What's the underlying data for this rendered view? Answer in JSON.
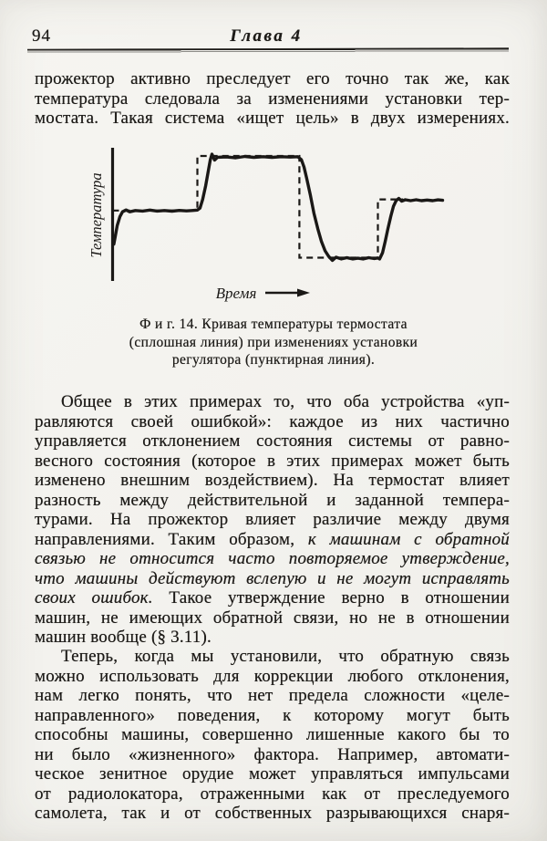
{
  "header": {
    "page_number": "94",
    "chapter_title": "Глава 4"
  },
  "body": {
    "paragraphs": [
      {
        "lines": [
          {
            "t": "прожектор активно преследует его точно так же, как"
          },
          {
            "t": "температура следовала за изменениями установки тер-"
          },
          {
            "t": "мостата. Такая система «ищет цель» в двух измерениях."
          }
        ]
      },
      {
        "lines": [
          {
            "t": "Общее в этих примерах то, что оба устройства «уп-",
            "indent": true
          },
          {
            "t": "равляются своей ошибкой»: каждое из них частично"
          },
          {
            "t": "управляется отклонением состояния системы от равно-"
          },
          {
            "t": "весного состояния (которое в этих примерах может быть"
          },
          {
            "t": "изменено внешним воздействием). На термостат влияет"
          },
          {
            "t": "разность между действительной и заданной темпера-"
          },
          {
            "t": "турами. На прожектор влияет различие между двумя"
          },
          {
            "seg": [
              {
                "t": "направлениями. Таким образом, "
              },
              {
                "t": "к машинам с обратной",
                "i": true
              }
            ]
          },
          {
            "t": "связью не относится часто повторяемое утверждение,",
            "i": true
          },
          {
            "t": "что машины действуют вслепую и не могут исправлять",
            "i": true
          },
          {
            "seg": [
              {
                "t": "своих ошибок.",
                "i": true
              },
              {
                "t": " Такое утверждение верно в отношении"
              }
            ]
          },
          {
            "t": "машин, не имеющих обратной связи, но не в отношении"
          },
          {
            "t": "машин вообще (§ 3.11).",
            "last": true
          }
        ]
      },
      {
        "lines": [
          {
            "t": "Теперь, когда мы установили, что обратную связь",
            "indent": true
          },
          {
            "t": "можно использовать для коррекции любого отклонения,"
          },
          {
            "t": "нам легко понять, что нет предела сложности «целе-"
          },
          {
            "t": "направленного» поведения, к которому могут быть"
          },
          {
            "t": "способны машины, совершенно лишенные какого бы то"
          },
          {
            "t": "ни было «жизненного» фактора. Например, автомати-"
          },
          {
            "t": "ческое зенитное орудие может управляться импульсами"
          },
          {
            "t": "от радиолокатора, отраженными как от преследуемого"
          },
          {
            "t": "самолета, так и от собственных разрывающихся снаря-"
          }
        ]
      }
    ]
  },
  "figure": {
    "ylabel": "Температура",
    "xlabel": "Время",
    "caption_lines": [
      "Ф и г.  14.  Кривая температуры термостата",
      "(сплошная линия) при изменениях установки",
      "регулятора (пунктирная линия)."
    ],
    "ink_color": "#1a1816"
  },
  "chart_data": {
    "type": "line",
    "title": "Фиг. 14. Кривая температуры термостата при изменениях установки регулятора",
    "xlabel": "Время",
    "ylabel": "Температура",
    "x_range": [
      0,
      100
    ],
    "y_range": [
      0,
      110
    ],
    "grid": false,
    "legend_position": "none (line styles distinguish series, described in caption)",
    "series": [
      {
        "name": "температура термостата (сплошная линия)",
        "style": "solid",
        "points": [
          [
            0.4,
            29
          ],
          [
            0.8,
            35
          ],
          [
            1.4,
            44
          ],
          [
            2.2,
            51
          ],
          [
            3.0,
            55
          ],
          [
            4.1,
            56.5
          ],
          [
            5.2,
            55
          ],
          [
            6.9,
            56
          ],
          [
            9.1,
            55.6
          ],
          [
            11.3,
            56.4
          ],
          [
            13.5,
            55.6
          ],
          [
            15.7,
            56
          ],
          [
            18,
            55.5
          ],
          [
            20.2,
            56.1
          ],
          [
            22.4,
            55.7
          ],
          [
            24,
            56
          ],
          [
            25.7,
            56.4
          ],
          [
            26.5,
            58
          ],
          [
            27.3,
            65
          ],
          [
            28.2,
            76
          ],
          [
            29,
            88
          ],
          [
            29.6,
            97
          ],
          [
            30.1,
            101.5
          ],
          [
            30.9,
            96.7
          ],
          [
            31.8,
            99
          ],
          [
            34.5,
            99.3
          ],
          [
            37.3,
            98.5
          ],
          [
            40.1,
            99.6
          ],
          [
            42.8,
            98.9
          ],
          [
            45.6,
            99.4
          ],
          [
            48.3,
            98.9
          ],
          [
            51.1,
            99.4
          ],
          [
            53.9,
            99.1
          ],
          [
            56.1,
            99.4
          ],
          [
            57.2,
            97
          ],
          [
            58,
            91
          ],
          [
            58.8,
            82
          ],
          [
            59.9,
            69
          ],
          [
            61,
            54
          ],
          [
            62.2,
            41
          ],
          [
            63.3,
            31
          ],
          [
            64.4,
            23.5
          ],
          [
            65.5,
            19
          ],
          [
            66.6,
            15.8
          ],
          [
            67.7,
            18.4
          ],
          [
            69.3,
            17
          ],
          [
            71,
            18
          ],
          [
            72.7,
            17
          ],
          [
            74.3,
            17.6
          ],
          [
            76,
            17
          ],
          [
            77.6,
            18
          ],
          [
            79.3,
            17.3
          ],
          [
            80.4,
            17.8
          ],
          [
            80.9,
            17
          ],
          [
            81.8,
            22
          ],
          [
            82.6,
            31
          ],
          [
            83.4,
            41
          ],
          [
            84.3,
            51.5
          ],
          [
            85.1,
            59.5
          ],
          [
            85.9,
            64
          ],
          [
            86.7,
            65.8
          ],
          [
            87.6,
            63.6
          ],
          [
            88.7,
            64.7
          ],
          [
            90.3,
            64
          ],
          [
            92,
            64.7
          ],
          [
            93.6,
            64
          ],
          [
            95.3,
            64.5
          ],
          [
            97,
            64
          ],
          [
            98.6,
            64.6
          ],
          [
            100,
            64.3
          ]
        ]
      },
      {
        "name": "установка регулятора (пунктирная линия)",
        "style": "dashed",
        "points": [
          [
            0,
            56
          ],
          [
            25.7,
            56
          ],
          [
            25.7,
            100
          ],
          [
            56.6,
            100
          ],
          [
            56.6,
            18
          ],
          [
            80.4,
            18
          ],
          [
            80.4,
            65
          ],
          [
            88,
            65
          ]
        ]
      }
    ]
  }
}
